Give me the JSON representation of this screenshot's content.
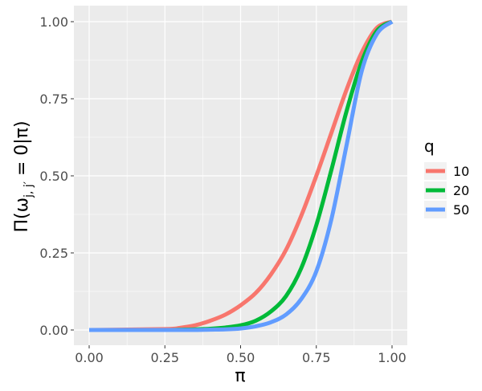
{
  "chart_data": {
    "type": "line",
    "xlabel": "π",
    "ylabel": {
      "prefix": "Π(ω",
      "subscript": "j, j′",
      "suffix": " = 0|π)"
    },
    "xlim": [
      0,
      1
    ],
    "ylim": [
      0,
      1
    ],
    "x_ticks": [
      "0.00",
      "0.25",
      "0.50",
      "0.75",
      "1.00"
    ],
    "y_ticks": [
      "0.00",
      "0.25",
      "0.50",
      "0.75",
      "1.00"
    ],
    "grid": true,
    "legend": {
      "title": "q",
      "position": "right"
    },
    "x": [
      0,
      0.25,
      0.3,
      0.35,
      0.4,
      0.45,
      0.5,
      0.55,
      0.6,
      0.65,
      0.7,
      0.75,
      0.8,
      0.85,
      0.9,
      0.95,
      1.0
    ],
    "series": [
      {
        "name": "10",
        "color": "#F8766D",
        "values": [
          0,
          0.003,
          0.007,
          0.015,
          0.03,
          0.05,
          0.08,
          0.12,
          0.18,
          0.26,
          0.37,
          0.5,
          0.64,
          0.78,
          0.9,
          0.98,
          1.0
        ]
      },
      {
        "name": "20",
        "color": "#00BA38",
        "values": [
          0,
          0,
          0.001,
          0.002,
          0.004,
          0.008,
          0.015,
          0.03,
          0.06,
          0.11,
          0.2,
          0.34,
          0.52,
          0.71,
          0.87,
          0.97,
          1.0
        ]
      },
      {
        "name": "50",
        "color": "#619CFF",
        "values": [
          0,
          0,
          0,
          0,
          0.001,
          0.002,
          0.005,
          0.012,
          0.025,
          0.05,
          0.1,
          0.19,
          0.36,
          0.6,
          0.84,
          0.96,
          1.0
        ]
      }
    ],
    "panel_background": "#EBEBEB",
    "grid_color": "#FFFFFF"
  }
}
